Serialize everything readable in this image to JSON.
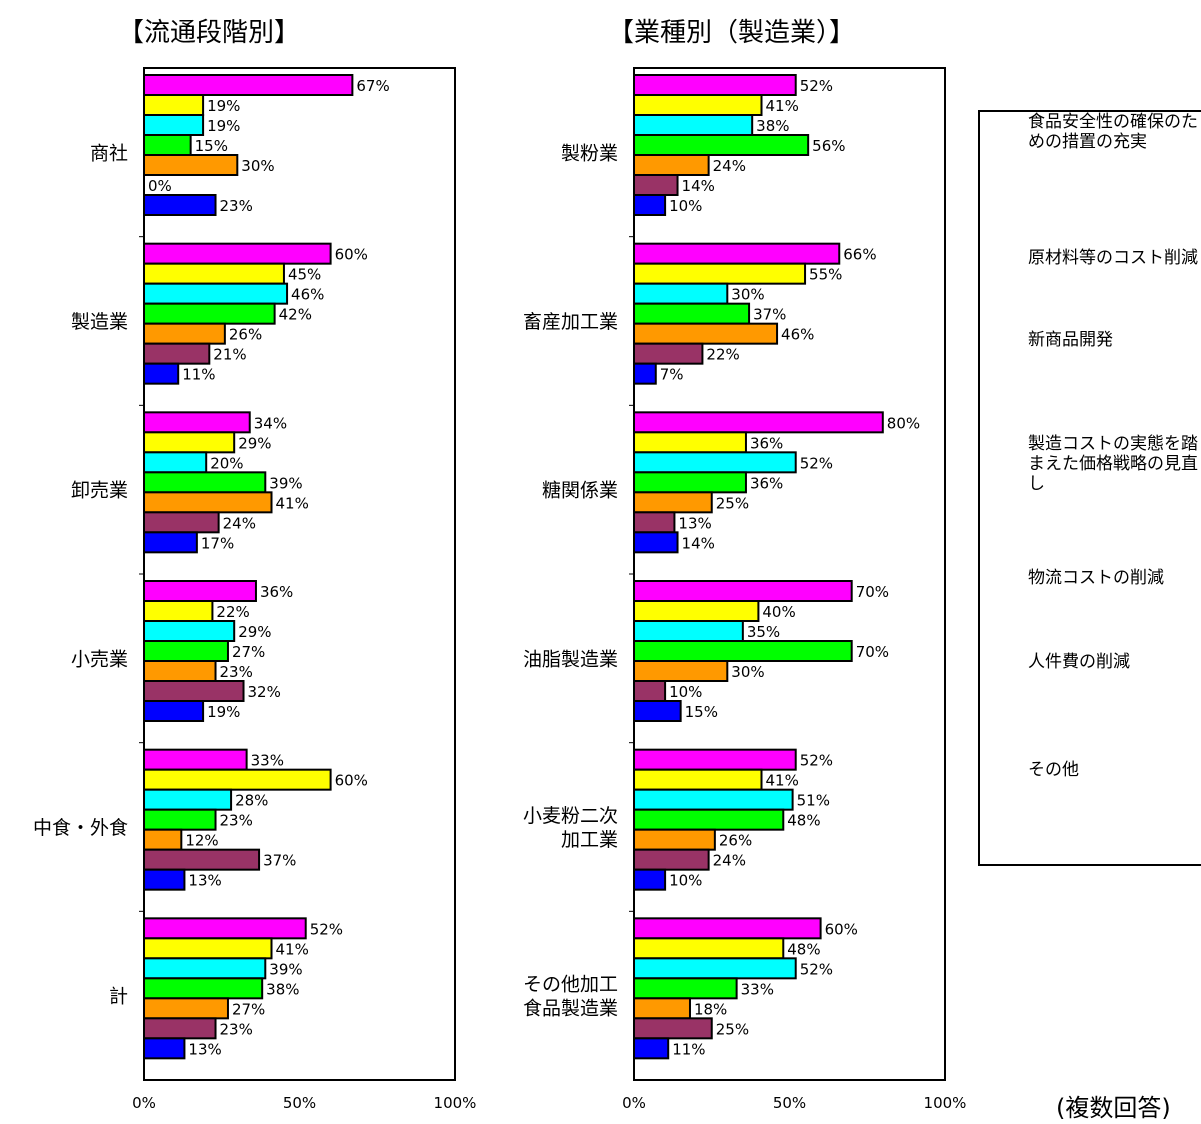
{
  "note": "(複数回答)",
  "legend": [
    {
      "label": "食品安全性の確保のための措置の充実",
      "color": "#ff00ff"
    },
    {
      "label": "原材料等のコスト削減",
      "color": "#ffff00"
    },
    {
      "label": "新商品開発",
      "color": "#00ffff"
    },
    {
      "label": "製造コストの実態を踏まえた価格戦略の見直し",
      "color": "#00ff00"
    },
    {
      "label": "物流コストの削減",
      "color": "#ff9900"
    },
    {
      "label": "人件費の削減",
      "color": "#993366"
    },
    {
      "label": "その他",
      "color": "#0000ff"
    }
  ],
  "chart_data": [
    {
      "type": "bar",
      "orientation": "horizontal",
      "title": "【流通段階別】",
      "categories": [
        "商社",
        "製造業",
        "卸売業",
        "小売業",
        "中食・外食",
        "計"
      ],
      "x_ticks": [
        "0%",
        "50%",
        "100%"
      ],
      "xlim": [
        0,
        100
      ],
      "value_suffix": "%",
      "series": [
        {
          "name": "食品安全性の確保のための措置の充実",
          "color": "#ff00ff",
          "values": [
            67,
            60,
            34,
            36,
            33,
            52
          ]
        },
        {
          "name": "原材料等のコスト削減",
          "color": "#ffff00",
          "values": [
            19,
            45,
            29,
            22,
            60,
            41
          ]
        },
        {
          "name": "新商品開発",
          "color": "#00ffff",
          "values": [
            19,
            46,
            20,
            29,
            28,
            39
          ]
        },
        {
          "name": "製造コストの実態を踏まえた価格戦略の見直し",
          "color": "#00ff00",
          "values": [
            15,
            42,
            39,
            27,
            23,
            38
          ]
        },
        {
          "name": "物流コストの削減",
          "color": "#ff9900",
          "values": [
            30,
            26,
            41,
            23,
            12,
            27
          ]
        },
        {
          "name": "人件費の削減",
          "color": "#993366",
          "values": [
            0,
            21,
            24,
            32,
            37,
            23
          ]
        },
        {
          "name": "その他",
          "color": "#0000ff",
          "values": [
            23,
            11,
            17,
            19,
            13,
            13
          ]
        }
      ]
    },
    {
      "type": "bar",
      "orientation": "horizontal",
      "title": "【業種別（製造業）】",
      "categories": [
        "製粉業",
        "畜産加工業",
        "糖関係業",
        "油脂製造業",
        "小麦粉二次\n加工業",
        "その他加工\n食品製造業"
      ],
      "x_ticks": [
        "0%",
        "50%",
        "100%"
      ],
      "xlim": [
        0,
        100
      ],
      "value_suffix": "%",
      "series": [
        {
          "name": "食品安全性の確保のための措置の充実",
          "color": "#ff00ff",
          "values": [
            52,
            66,
            80,
            70,
            52,
            60
          ]
        },
        {
          "name": "原材料等のコスト削減",
          "color": "#ffff00",
          "values": [
            41,
            55,
            36,
            40,
            41,
            48
          ]
        },
        {
          "name": "新商品開発",
          "color": "#00ffff",
          "values": [
            38,
            30,
            52,
            35,
            51,
            52
          ]
        },
        {
          "name": "製造コストの実態を踏まえた価格戦略の見直し",
          "color": "#00ff00",
          "values": [
            56,
            37,
            36,
            70,
            48,
            33
          ]
        },
        {
          "name": "物流コストの削減",
          "color": "#ff9900",
          "values": [
            24,
            46,
            25,
            30,
            26,
            18
          ]
        },
        {
          "name": "人件費の削減",
          "color": "#993366",
          "values": [
            14,
            22,
            13,
            10,
            24,
            25
          ]
        },
        {
          "name": "その他",
          "color": "#0000ff",
          "values": [
            10,
            7,
            14,
            15,
            10,
            11
          ]
        }
      ]
    }
  ]
}
